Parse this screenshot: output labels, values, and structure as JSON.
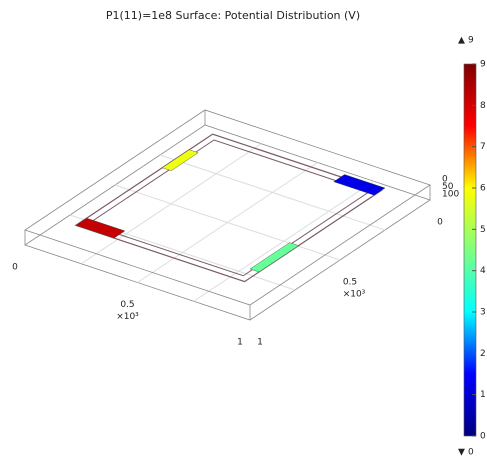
{
  "chart_data": {
    "type": "surface3d",
    "title": "P1(11)=1e8   Surface: Potential Distribution (V)",
    "x_ticks": [
      0,
      0.5,
      1
    ],
    "x_exponent": "×10³",
    "y_ticks": [
      0,
      0.5,
      1
    ],
    "y_exponent": "×10³",
    "z_ticks": [
      0,
      50,
      100
    ],
    "colorbar": {
      "min": 0,
      "max": 9,
      "ticks": [
        0,
        1,
        2,
        3,
        4,
        5,
        6,
        7,
        8,
        9
      ],
      "colormap": [
        "#000080",
        "#0000ff",
        "#00ffff",
        "#7fff7f",
        "#ffff00",
        "#ff0000",
        "#800000"
      ]
    },
    "patches": [
      8.2,
      5.8,
      1.2,
      4.2
    ]
  }
}
